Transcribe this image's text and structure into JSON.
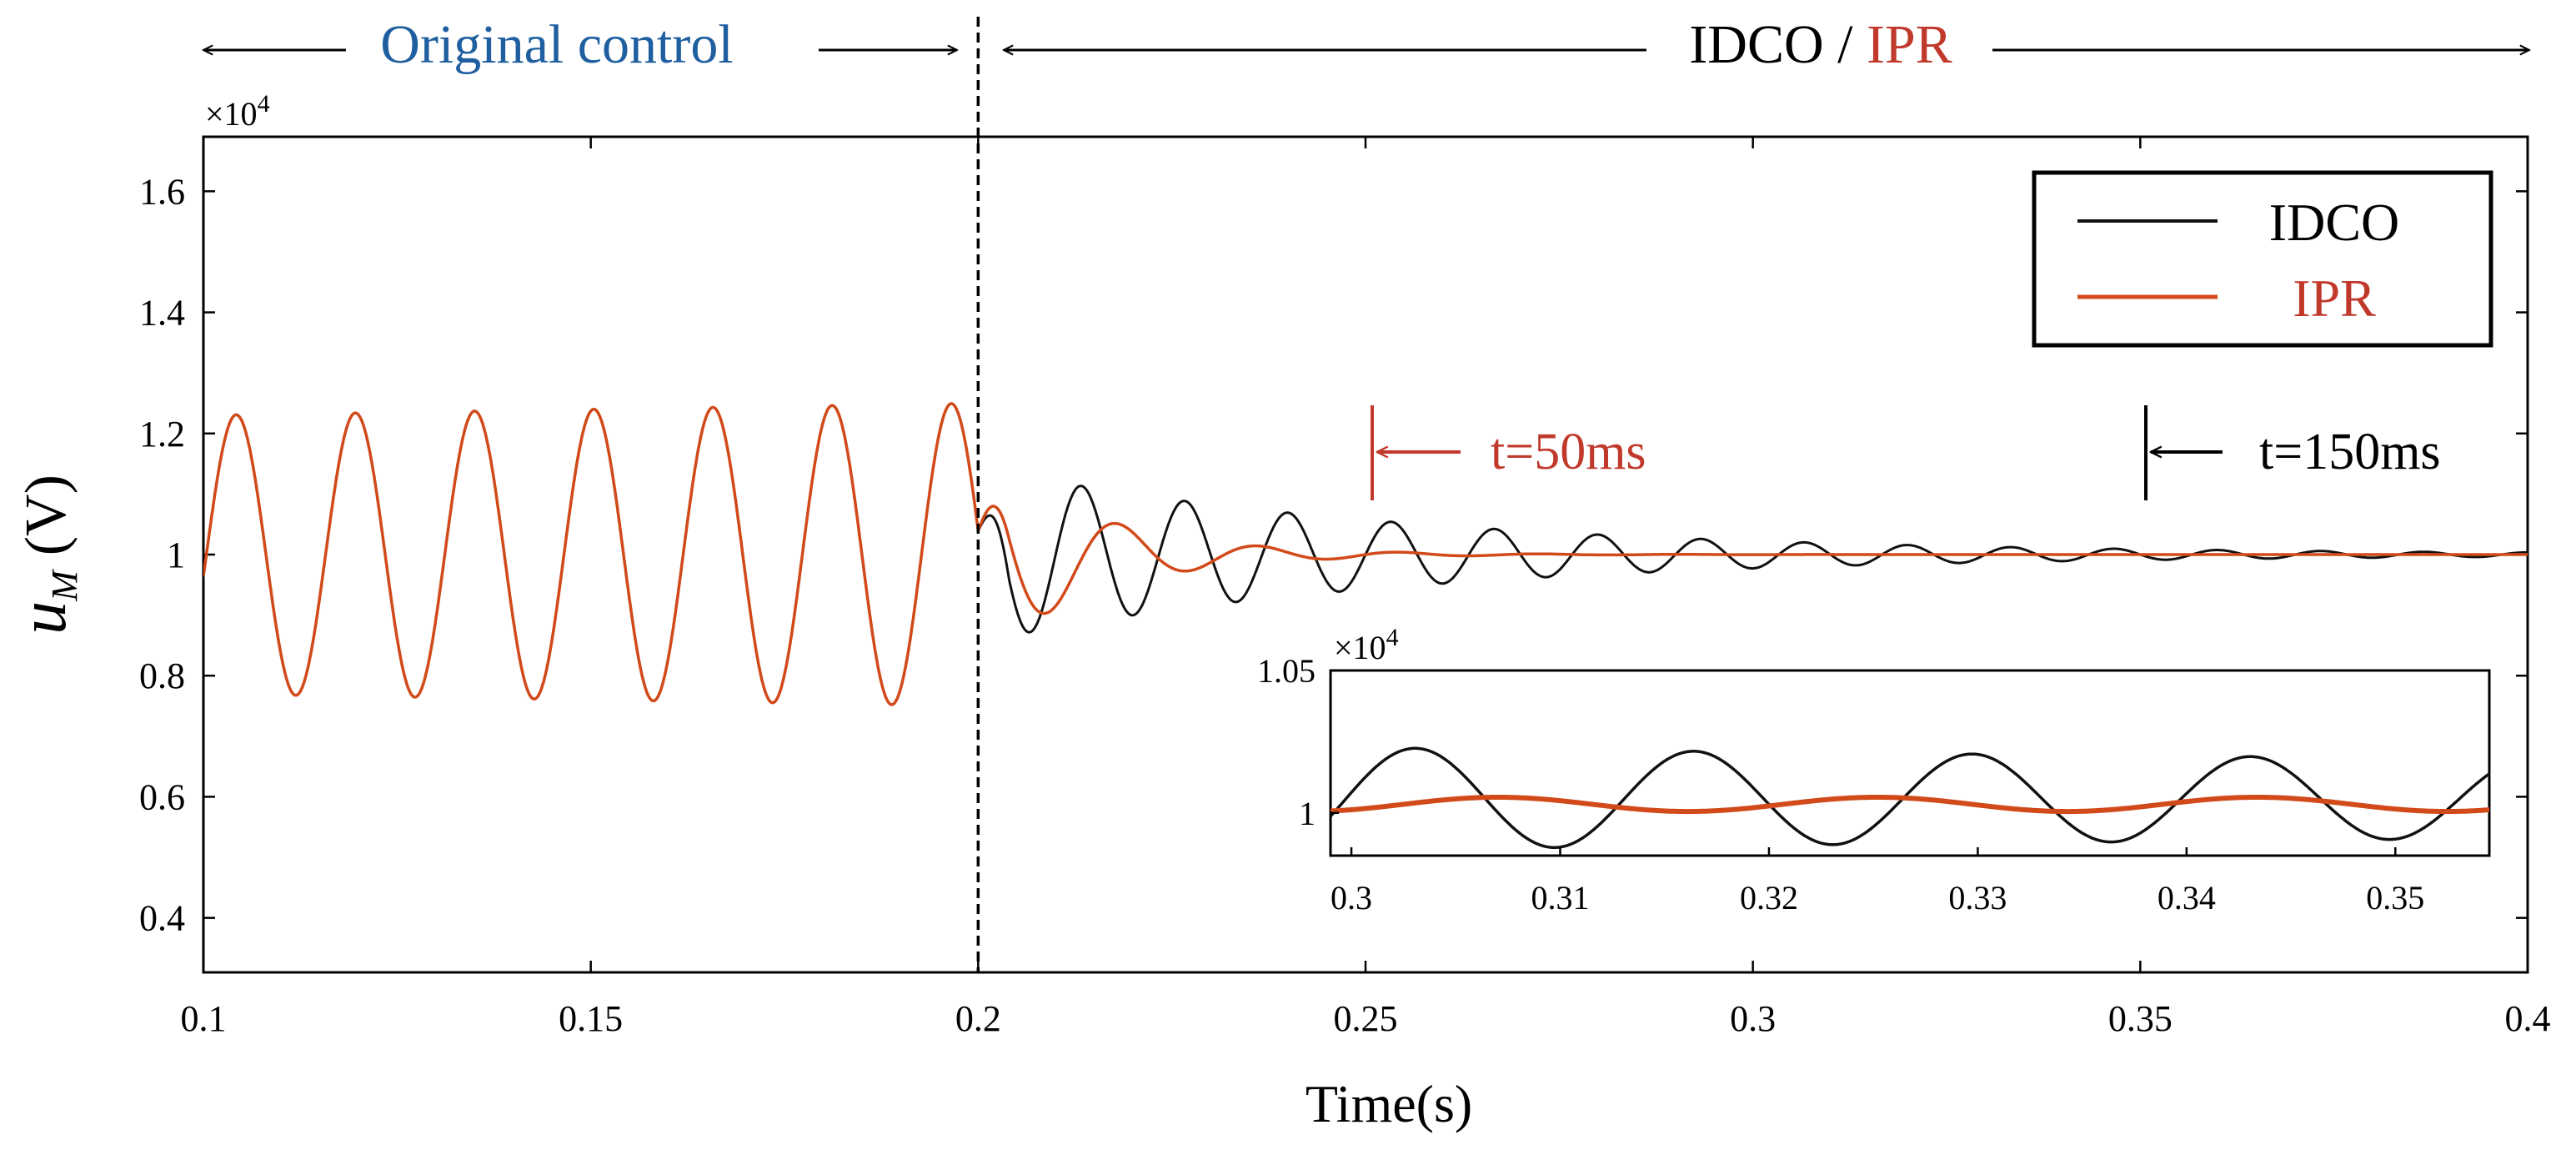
{
  "colors": {
    "idco": "#111111",
    "ipr": "#d24a1a",
    "annotation_red": "#c0392b",
    "original_blue": "#1f5fa0",
    "axis": "#000000"
  },
  "header": {
    "original_label": "Original control",
    "idco_label": "IDCO",
    "separator": " / ",
    "ipr_label": "IPR"
  },
  "chart_data": {
    "type": "line",
    "main": {
      "xlabel": "Time(s)",
      "ylabel_main": "u",
      "ylabel_sub": "M",
      "ylabel_unit": "(V)",
      "y_multiplier_base": "×10",
      "y_multiplier_exp": "4",
      "xlim": [
        0.1,
        0.4
      ],
      "ylim": [
        0.31,
        1.69
      ],
      "x_ticks": [
        0.1,
        0.15,
        0.2,
        0.25,
        0.3,
        0.35,
        0.4
      ],
      "x_tick_labels": [
        "0.1",
        "0.15",
        "0.2",
        "0.25",
        "0.3",
        "0.35",
        "0.4"
      ],
      "y_ticks": [
        0.4,
        0.6,
        0.8,
        1.0,
        1.2,
        1.4,
        1.6
      ],
      "y_tick_labels": [
        "0.4",
        "0.6",
        "0.8",
        "1",
        "1.2",
        "1.4",
        "1.6"
      ],
      "control_switch_time": 0.2,
      "legend": [
        {
          "name": "IDCO"
        },
        {
          "name": "IPR"
        }
      ],
      "legend_position": "top-right",
      "series": [
        {
          "name": "IDCO",
          "before_switch": {
            "offset": 1.0,
            "amplitude_start": 0.23,
            "amplitude_end": 0.25,
            "frequency_hz": 65
          },
          "after_switch": {
            "offset": 1.0,
            "amplitude": 0.145,
            "decay_per_s": 18.5,
            "frequency_hz": 75
          }
        },
        {
          "name": "IPR",
          "before_switch": {
            "offset": 1.0,
            "amplitude_start": 0.23,
            "amplitude_end": 0.25,
            "frequency_hz": 65
          },
          "after_switch": {
            "offset": 1.0,
            "amplitude": 0.18,
            "decay_per_s": 70,
            "frequency_hz": 55
          }
        }
      ],
      "annotations": [
        {
          "label": "t=50ms",
          "x": 0.25,
          "y": 1.2
        },
        {
          "label": "t=150ms",
          "x": 0.35,
          "y": 1.2
        }
      ]
    },
    "inset": {
      "xlim": [
        0.299,
        0.3545
      ],
      "ylim": [
        0.985,
        1.05
      ],
      "x_ticks": [
        0.3,
        0.31,
        0.32,
        0.33,
        0.34,
        0.35
      ],
      "x_tick_labels": [
        "0.3",
        "0.31",
        "0.32",
        "0.33",
        "0.34",
        "0.35"
      ],
      "y_ticks": [
        1.05,
        1.0
      ],
      "y_tick_labels": [
        "1.05",
        "1"
      ],
      "y_multiplier_base": "×10",
      "y_multiplier_exp": "4",
      "series": [
        {
          "name": "IDCO",
          "offset": 1.005,
          "amplitude": 0.018,
          "amplitude_decay_per_s": 4.5,
          "frequency_hz": 75
        },
        {
          "name": "IPR",
          "offset": 1.003,
          "amplitude": 0.0025,
          "frequency_hz": 55
        }
      ]
    }
  }
}
